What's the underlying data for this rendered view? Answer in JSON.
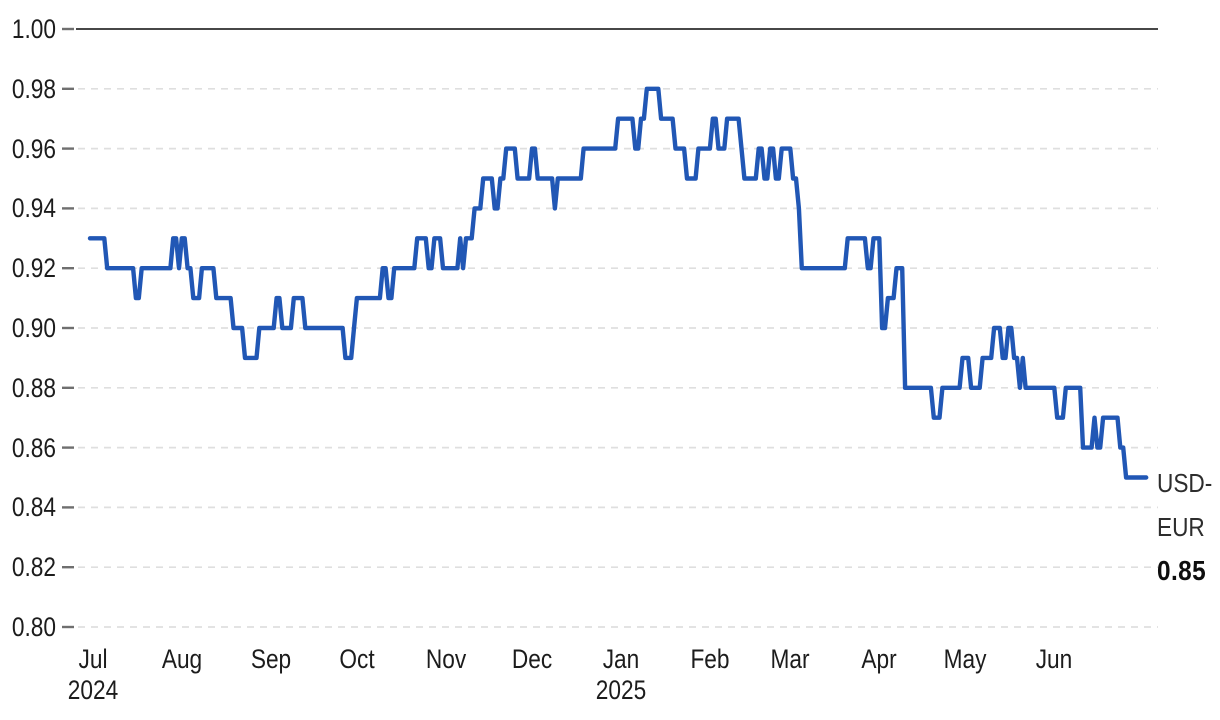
{
  "chart_data": {
    "type": "line",
    "title": "",
    "ylabel": "",
    "xlabel": "",
    "ylim": [
      0.8,
      1.0
    ],
    "grid": "dashed horizontal gridlines; solid top line at 1.00; no vertical gridlines",
    "legend_position": "right-of-line annotation",
    "y_ticks": [
      "1.00",
      "0.98",
      "0.96",
      "0.94",
      "0.92",
      "0.90",
      "0.88",
      "0.86",
      "0.84",
      "0.82",
      "0.80"
    ],
    "x_ticks": [
      {
        "d": 1,
        "label": "Jul",
        "sub": "2024"
      },
      {
        "d": 32,
        "label": "Aug",
        "sub": ""
      },
      {
        "d": 63,
        "label": "Sep",
        "sub": ""
      },
      {
        "d": 93,
        "label": "Oct",
        "sub": ""
      },
      {
        "d": 124,
        "label": "Nov",
        "sub": ""
      },
      {
        "d": 154,
        "label": "Dec",
        "sub": ""
      },
      {
        "d": 185,
        "label": "Jan",
        "sub": "2025"
      },
      {
        "d": 216,
        "label": "Feb",
        "sub": ""
      },
      {
        "d": 244,
        "label": "Mar",
        "sub": ""
      },
      {
        "d": 275,
        "label": "Apr",
        "sub": ""
      },
      {
        "d": 305,
        "label": "May",
        "sub": ""
      },
      {
        "d": 336,
        "label": "Jun",
        "sub": ""
      }
    ],
    "series": [
      {
        "name": "USD-EUR",
        "range_shown": "Jul 2024 - Jun 2025",
        "last_value": 0.85,
        "max_value": 0.98,
        "min_value": 0.85,
        "steps_format": "[day offset from chart start (~Jul 1 2024), exchange rate]; value holds until next breakpoint",
        "end_day": 368,
        "steps": [
          [
            0,
            0.93
          ],
          [
            6,
            0.92
          ],
          [
            16,
            0.91
          ],
          [
            18,
            0.92
          ],
          [
            29,
            0.93
          ],
          [
            31,
            0.92
          ],
          [
            32,
            0.93
          ],
          [
            34,
            0.92
          ],
          [
            36,
            0.91
          ],
          [
            39,
            0.92
          ],
          [
            44,
            0.91
          ],
          [
            50,
            0.9
          ],
          [
            54,
            0.89
          ],
          [
            59,
            0.9
          ],
          [
            65,
            0.91
          ],
          [
            67,
            0.9
          ],
          [
            71,
            0.91
          ],
          [
            75,
            0.9
          ],
          [
            89,
            0.89
          ],
          [
            92,
            0.9
          ],
          [
            93,
            0.91
          ],
          [
            102,
            0.92
          ],
          [
            104,
            0.91
          ],
          [
            106,
            0.92
          ],
          [
            114,
            0.93
          ],
          [
            118,
            0.92
          ],
          [
            120,
            0.93
          ],
          [
            123,
            0.92
          ],
          [
            129,
            0.93
          ],
          [
            130,
            0.92
          ],
          [
            131,
            0.93
          ],
          [
            134,
            0.94
          ],
          [
            137,
            0.95
          ],
          [
            141,
            0.94
          ],
          [
            143,
            0.95
          ],
          [
            145,
            0.96
          ],
          [
            149,
            0.95
          ],
          [
            154,
            0.96
          ],
          [
            156,
            0.95
          ],
          [
            162,
            0.94
          ],
          [
            163,
            0.95
          ],
          [
            172,
            0.96
          ],
          [
            184,
            0.97
          ],
          [
            190,
            0.96
          ],
          [
            192,
            0.97
          ],
          [
            194,
            0.98
          ],
          [
            199,
            0.97
          ],
          [
            204,
            0.96
          ],
          [
            208,
            0.95
          ],
          [
            212,
            0.96
          ],
          [
            217,
            0.97
          ],
          [
            219,
            0.96
          ],
          [
            222,
            0.97
          ],
          [
            227,
            0.96
          ],
          [
            228,
            0.95
          ],
          [
            233,
            0.96
          ],
          [
            235,
            0.95
          ],
          [
            237,
            0.96
          ],
          [
            239,
            0.95
          ],
          [
            241,
            0.96
          ],
          [
            245,
            0.95
          ],
          [
            247,
            0.94
          ],
          [
            248,
            0.92
          ],
          [
            264,
            0.93
          ],
          [
            271,
            0.92
          ],
          [
            273,
            0.93
          ],
          [
            276,
            0.9
          ],
          [
            278,
            0.91
          ],
          [
            281,
            0.92
          ],
          [
            284,
            0.88
          ],
          [
            294,
            0.87
          ],
          [
            297,
            0.88
          ],
          [
            304,
            0.89
          ],
          [
            307,
            0.88
          ],
          [
            311,
            0.89
          ],
          [
            315,
            0.9
          ],
          [
            318,
            0.89
          ],
          [
            320,
            0.9
          ],
          [
            322,
            0.89
          ],
          [
            324,
            0.88
          ],
          [
            325,
            0.89
          ],
          [
            326,
            0.88
          ],
          [
            337,
            0.87
          ],
          [
            340,
            0.88
          ],
          [
            346,
            0.86
          ],
          [
            350,
            0.87
          ],
          [
            351,
            0.86
          ],
          [
            353,
            0.87
          ],
          [
            359,
            0.86
          ],
          [
            361,
            0.85
          ],
          [
            368,
            0.85
          ]
        ]
      }
    ],
    "annotation": {
      "line1": "USD-",
      "line2": "EUR",
      "value": "0.85"
    }
  },
  "colors": {
    "line": "#2157b5",
    "grid_dashed": "#dfdfdf",
    "top_axis_line": "#474747",
    "tick_mark": "#6f6f6f",
    "text": "#1c1c1c",
    "value_text": "#0e0e0e",
    "background": "#ffffff"
  }
}
